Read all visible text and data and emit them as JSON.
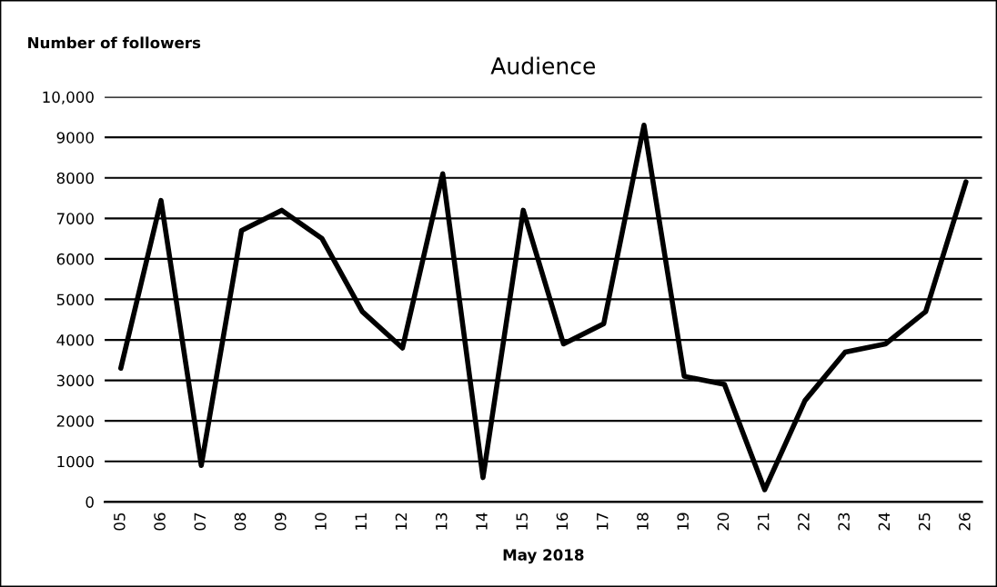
{
  "chart_data": {
    "type": "line",
    "title": "Audience",
    "ylabel": "Number of followers",
    "xlabel": "May 2018",
    "categories": [
      "05",
      "06",
      "07",
      "08",
      "09",
      "10",
      "11",
      "12",
      "13",
      "14",
      "15",
      "16",
      "17",
      "18",
      "19",
      "20",
      "21",
      "22",
      "23",
      "24",
      "25",
      "26"
    ],
    "series": [
      {
        "color": "#000000",
        "values": [
          3300,
          7440,
          900,
          6700,
          7200,
          6500,
          4700,
          3800,
          8100,
          600,
          7200,
          3900,
          4400,
          9300,
          3100,
          2900,
          300,
          2500,
          3700,
          3900,
          4700,
          7900
        ]
      }
    ],
    "ylim": [
      0,
      10000
    ],
    "yticks": [
      0,
      1000,
      2000,
      3000,
      4000,
      5000,
      6000,
      7000,
      8000,
      9000,
      {
        "value": 10000,
        "label": "10,000"
      }
    ],
    "grid": "y",
    "legend": false,
    "marker": "none",
    "line_style": "solid"
  }
}
